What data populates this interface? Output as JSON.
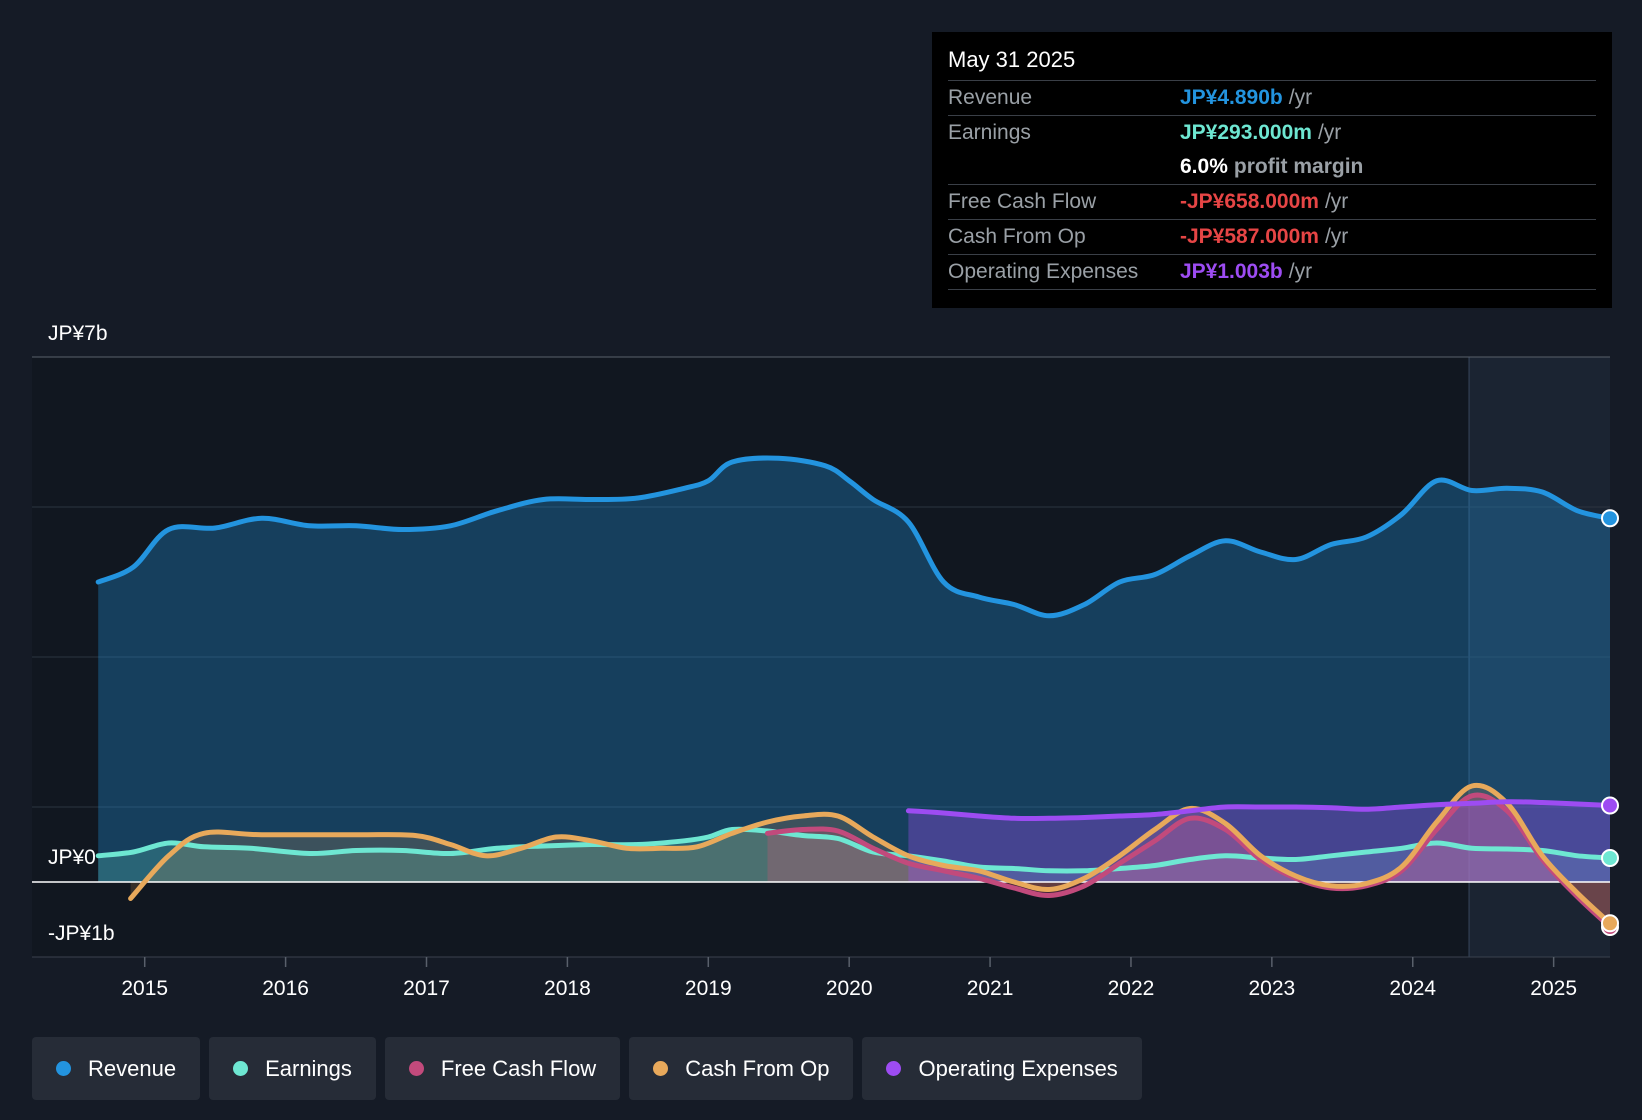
{
  "tooltip": {
    "date": "May 31 2025",
    "rows": [
      {
        "label": "Revenue",
        "value": "JP¥4.890b",
        "unit": "/yr",
        "color": "#2394df"
      },
      {
        "label": "Earnings",
        "value": "JP¥293.000m",
        "unit": "/yr",
        "color": "#6ee7d2"
      },
      {
        "label": "",
        "value": "6.0%",
        "unit": "profit margin",
        "color": "#ffffff"
      },
      {
        "label": "Free Cash Flow",
        "value": "-JP¥658.000m",
        "unit": "/yr",
        "color": "#e64545"
      },
      {
        "label": "Cash From Op",
        "value": "-JP¥587.000m",
        "unit": "/yr",
        "color": "#e64545"
      },
      {
        "label": "Operating Expenses",
        "value": "JP¥1.003b",
        "unit": "/yr",
        "color": "#9d4cf2"
      }
    ]
  },
  "legend": [
    {
      "label": "Revenue",
      "color": "#2394df"
    },
    {
      "label": "Earnings",
      "color": "#6ee7d2"
    },
    {
      "label": "Free Cash Flow",
      "color": "#c24a7c"
    },
    {
      "label": "Cash From Op",
      "color": "#e8a95b"
    },
    {
      "label": "Operating Expenses",
      "color": "#9d4cf2"
    }
  ],
  "chart_data": {
    "type": "line",
    "title": "",
    "y_tick_labels": [
      "JP¥7b",
      "JP¥0",
      "-JP¥1b"
    ],
    "ylim": [
      -1,
      7
    ],
    "xlim": [
      2014.2,
      2025.4
    ],
    "x_ticks": [
      2015,
      2016,
      2017,
      2018,
      2019,
      2020,
      2021,
      2022,
      2023,
      2024,
      2025
    ],
    "x_tick_labels": [
      "2015",
      "2016",
      "2017",
      "2018",
      "2019",
      "2020",
      "2021",
      "2022",
      "2023",
      "2024",
      "2025"
    ],
    "forecast_region_start": 2024.4,
    "series": [
      {
        "name": "Revenue",
        "color": "#2394df",
        "fill": true,
        "points": [
          [
            2014.67,
            4.0
          ],
          [
            2014.92,
            4.2
          ],
          [
            2015.17,
            4.7
          ],
          [
            2015.5,
            4.72
          ],
          [
            2015.83,
            4.85
          ],
          [
            2016.17,
            4.75
          ],
          [
            2016.5,
            4.75
          ],
          [
            2016.83,
            4.7
          ],
          [
            2017.17,
            4.75
          ],
          [
            2017.5,
            4.95
          ],
          [
            2017.83,
            5.1
          ],
          [
            2018.17,
            5.1
          ],
          [
            2018.5,
            5.12
          ],
          [
            2018.83,
            5.25
          ],
          [
            2019.0,
            5.35
          ],
          [
            2019.17,
            5.6
          ],
          [
            2019.5,
            5.65
          ],
          [
            2019.83,
            5.55
          ],
          [
            2020.0,
            5.35
          ],
          [
            2020.17,
            5.1
          ],
          [
            2020.42,
            4.8
          ],
          [
            2020.67,
            4.0
          ],
          [
            2020.92,
            3.8
          ],
          [
            2021.17,
            3.7
          ],
          [
            2021.42,
            3.55
          ],
          [
            2021.67,
            3.7
          ],
          [
            2021.92,
            4.0
          ],
          [
            2022.17,
            4.1
          ],
          [
            2022.42,
            4.35
          ],
          [
            2022.67,
            4.55
          ],
          [
            2022.92,
            4.4
          ],
          [
            2023.17,
            4.3
          ],
          [
            2023.42,
            4.5
          ],
          [
            2023.67,
            4.6
          ],
          [
            2023.92,
            4.9
          ],
          [
            2024.17,
            5.35
          ],
          [
            2024.42,
            5.22
          ],
          [
            2024.67,
            5.25
          ],
          [
            2024.92,
            5.2
          ],
          [
            2025.17,
            4.95
          ],
          [
            2025.4,
            4.85
          ]
        ]
      },
      {
        "name": "Earnings",
        "color": "#6ee7d2",
        "fill": true,
        "points": [
          [
            2014.67,
            0.35
          ],
          [
            2014.92,
            0.4
          ],
          [
            2015.17,
            0.52
          ],
          [
            2015.42,
            0.47
          ],
          [
            2015.75,
            0.45
          ],
          [
            2016.17,
            0.38
          ],
          [
            2016.5,
            0.42
          ],
          [
            2016.83,
            0.42
          ],
          [
            2017.17,
            0.38
          ],
          [
            2017.5,
            0.45
          ],
          [
            2017.83,
            0.48
          ],
          [
            2018.17,
            0.5
          ],
          [
            2018.5,
            0.5
          ],
          [
            2018.83,
            0.55
          ],
          [
            2019.0,
            0.6
          ],
          [
            2019.17,
            0.7
          ],
          [
            2019.42,
            0.68
          ],
          [
            2019.67,
            0.62
          ],
          [
            2019.92,
            0.58
          ],
          [
            2020.17,
            0.4
          ],
          [
            2020.42,
            0.35
          ],
          [
            2020.67,
            0.28
          ],
          [
            2020.92,
            0.2
          ],
          [
            2021.17,
            0.18
          ],
          [
            2021.42,
            0.15
          ],
          [
            2021.67,
            0.15
          ],
          [
            2021.92,
            0.18
          ],
          [
            2022.17,
            0.22
          ],
          [
            2022.42,
            0.3
          ],
          [
            2022.67,
            0.35
          ],
          [
            2022.92,
            0.32
          ],
          [
            2023.17,
            0.3
          ],
          [
            2023.42,
            0.35
          ],
          [
            2023.67,
            0.4
          ],
          [
            2023.92,
            0.45
          ],
          [
            2024.17,
            0.52
          ],
          [
            2024.42,
            0.45
          ],
          [
            2024.67,
            0.44
          ],
          [
            2024.92,
            0.42
          ],
          [
            2025.17,
            0.35
          ],
          [
            2025.4,
            0.32
          ]
        ]
      },
      {
        "name": "Free Cash Flow",
        "color": "#c24a7c",
        "fill": true,
        "points": [
          [
            2019.42,
            0.65
          ],
          [
            2019.67,
            0.7
          ],
          [
            2019.92,
            0.68
          ],
          [
            2020.17,
            0.45
          ],
          [
            2020.42,
            0.25
          ],
          [
            2020.67,
            0.15
          ],
          [
            2020.92,
            0.05
          ],
          [
            2021.17,
            -0.08
          ],
          [
            2021.42,
            -0.18
          ],
          [
            2021.67,
            -0.05
          ],
          [
            2021.92,
            0.25
          ],
          [
            2022.17,
            0.55
          ],
          [
            2022.42,
            0.85
          ],
          [
            2022.67,
            0.7
          ],
          [
            2022.92,
            0.3
          ],
          [
            2023.17,
            0.05
          ],
          [
            2023.42,
            -0.08
          ],
          [
            2023.67,
            -0.05
          ],
          [
            2023.92,
            0.15
          ],
          [
            2024.17,
            0.7
          ],
          [
            2024.42,
            1.15
          ],
          [
            2024.67,
            0.95
          ],
          [
            2024.92,
            0.3
          ],
          [
            2025.17,
            -0.2
          ],
          [
            2025.4,
            -0.6
          ]
        ]
      },
      {
        "name": "Cash From Op",
        "color": "#e8a95b",
        "fill": true,
        "points": [
          [
            2014.9,
            -0.22
          ],
          [
            2015.17,
            0.35
          ],
          [
            2015.42,
            0.65
          ],
          [
            2015.83,
            0.63
          ],
          [
            2016.5,
            0.63
          ],
          [
            2016.92,
            0.62
          ],
          [
            2017.17,
            0.5
          ],
          [
            2017.42,
            0.35
          ],
          [
            2017.67,
            0.45
          ],
          [
            2017.92,
            0.6
          ],
          [
            2018.17,
            0.55
          ],
          [
            2018.42,
            0.45
          ],
          [
            2018.67,
            0.45
          ],
          [
            2018.92,
            0.47
          ],
          [
            2019.17,
            0.65
          ],
          [
            2019.42,
            0.8
          ],
          [
            2019.67,
            0.88
          ],
          [
            2019.92,
            0.88
          ],
          [
            2020.17,
            0.6
          ],
          [
            2020.42,
            0.35
          ],
          [
            2020.67,
            0.22
          ],
          [
            2020.92,
            0.15
          ],
          [
            2021.17,
            0.0
          ],
          [
            2021.42,
            -0.1
          ],
          [
            2021.67,
            0.05
          ],
          [
            2021.92,
            0.35
          ],
          [
            2022.17,
            0.7
          ],
          [
            2022.42,
            0.98
          ],
          [
            2022.67,
            0.78
          ],
          [
            2022.92,
            0.35
          ],
          [
            2023.17,
            0.08
          ],
          [
            2023.42,
            -0.05
          ],
          [
            2023.67,
            -0.02
          ],
          [
            2023.92,
            0.2
          ],
          [
            2024.17,
            0.8
          ],
          [
            2024.42,
            1.28
          ],
          [
            2024.67,
            1.05
          ],
          [
            2024.92,
            0.35
          ],
          [
            2025.17,
            -0.15
          ],
          [
            2025.4,
            -0.55
          ]
        ]
      },
      {
        "name": "Operating Expenses",
        "color": "#9d4cf2",
        "fill": true,
        "points": [
          [
            2020.42,
            0.95
          ],
          [
            2020.67,
            0.92
          ],
          [
            2020.92,
            0.88
          ],
          [
            2021.17,
            0.85
          ],
          [
            2021.42,
            0.85
          ],
          [
            2021.67,
            0.86
          ],
          [
            2021.92,
            0.88
          ],
          [
            2022.17,
            0.9
          ],
          [
            2022.42,
            0.95
          ],
          [
            2022.67,
            1.0
          ],
          [
            2022.92,
            1.0
          ],
          [
            2023.17,
            1.0
          ],
          [
            2023.42,
            0.99
          ],
          [
            2023.67,
            0.97
          ],
          [
            2023.92,
            1.0
          ],
          [
            2024.17,
            1.03
          ],
          [
            2024.42,
            1.05
          ],
          [
            2024.67,
            1.07
          ],
          [
            2024.92,
            1.06
          ],
          [
            2025.17,
            1.04
          ],
          [
            2025.4,
            1.02
          ]
        ]
      }
    ]
  }
}
